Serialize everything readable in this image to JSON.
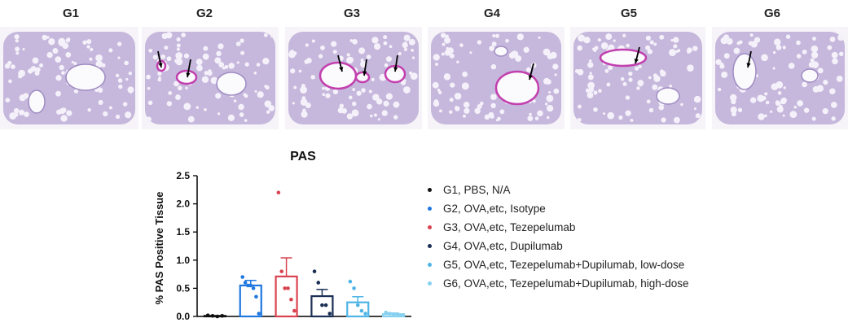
{
  "panels": [
    {
      "label": "G1",
      "arrows": 0
    },
    {
      "label": "G2",
      "arrows": 2
    },
    {
      "label": "G3",
      "arrows": 3
    },
    {
      "label": "G4",
      "arrows": 1
    },
    {
      "label": "G5",
      "arrows": 1
    },
    {
      "label": "G6",
      "arrows": 1
    }
  ],
  "chart_data": {
    "type": "bar",
    "title": "PAS",
    "xlabel": "",
    "ylabel": "% PAS Positive Tissue",
    "ylim": [
      0,
      2.5
    ],
    "yticks": [
      "0.0",
      "0.5",
      "1.0",
      "1.5",
      "2.0",
      "2.5"
    ],
    "categories": [
      "G1",
      "G2",
      "G3",
      "G4",
      "G5",
      "G6"
    ],
    "values": [
      0.01,
      0.55,
      0.71,
      0.36,
      0.25,
      0.04
    ],
    "errors": [
      0.0,
      0.09,
      0.33,
      0.12,
      0.1,
      0.02
    ],
    "points": [
      [
        0.02,
        0.01,
        0.0,
        0.01
      ],
      [
        0.7,
        0.6,
        0.55,
        0.55,
        0.5,
        0.35,
        0.05
      ],
      [
        2.2,
        0.8,
        0.5,
        0.5,
        0.3,
        0.1
      ],
      [
        0.8,
        0.6,
        0.2,
        0.2,
        0.05
      ],
      [
        0.62,
        0.5,
        0.2,
        0.1,
        0.05
      ],
      [
        0.07,
        0.05,
        0.04,
        0.03,
        0.02
      ]
    ],
    "colors": [
      "#111111",
      "#1f77e0",
      "#d9434f",
      "#1b2f55",
      "#4db4e6",
      "#86d0f0"
    ],
    "legend_position": "right",
    "legend": [
      "G1, PBS, N/A",
      "G2, OVA,etc, Isotype",
      "G3, OVA,etc, Tezepelumab",
      "G4, OVA,etc, Dupilumab",
      "G5, OVA,etc, Tezepelumab+Dupilumab, low-dose",
      "G6, OVA,etc, Tezepelumab+Dupilumab, high-dose"
    ]
  }
}
